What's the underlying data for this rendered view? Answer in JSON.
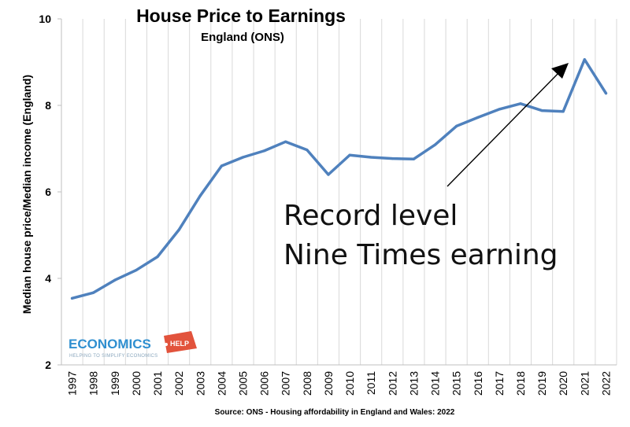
{
  "chart_data": {
    "type": "line",
    "title": "House Price to Earnings",
    "subtitle": "England (ONS)",
    "ylabel": "Median house price/Median income (England)",
    "xlabel": "",
    "ylim": [
      2,
      10
    ],
    "yticks": [
      2,
      4,
      6,
      8,
      10
    ],
    "grid": "vertical",
    "categories": [
      "1997",
      "1998",
      "1999",
      "2000",
      "2001",
      "2002",
      "2003",
      "2004",
      "2005",
      "2006",
      "2007",
      "2008",
      "2009",
      "2010",
      "2011",
      "2012",
      "2013",
      "2014",
      "2015",
      "2016",
      "2017",
      "2018",
      "2019",
      "2020",
      "2021",
      "2022"
    ],
    "series": [
      {
        "color": "#4f81bd",
        "values": [
          3.54,
          3.67,
          3.96,
          4.19,
          4.5,
          5.12,
          5.91,
          6.6,
          6.8,
          6.95,
          7.16,
          6.97,
          6.4,
          6.85,
          6.8,
          6.77,
          6.76,
          7.09,
          7.52,
          7.72,
          7.91,
          8.04,
          7.88,
          7.86,
          9.06,
          8.28
        ]
      }
    ],
    "annotation": {
      "lines": [
        "Record level",
        "Nine Times earning"
      ]
    },
    "source": "Source: ONS - Housing affordability in England and Wales: 2022"
  },
  "logo": {
    "name": "ECONOMICS",
    "badge": "HELP",
    "tagline": "HELPING TO SIMPLIFY ECONOMICS",
    "colors": {
      "blue": "#2f8fd0",
      "red": "#e2533c"
    }
  },
  "colors": {
    "line": "#4f81bd",
    "grid": "#d9d9d9",
    "axis": "#bfbfbf"
  }
}
